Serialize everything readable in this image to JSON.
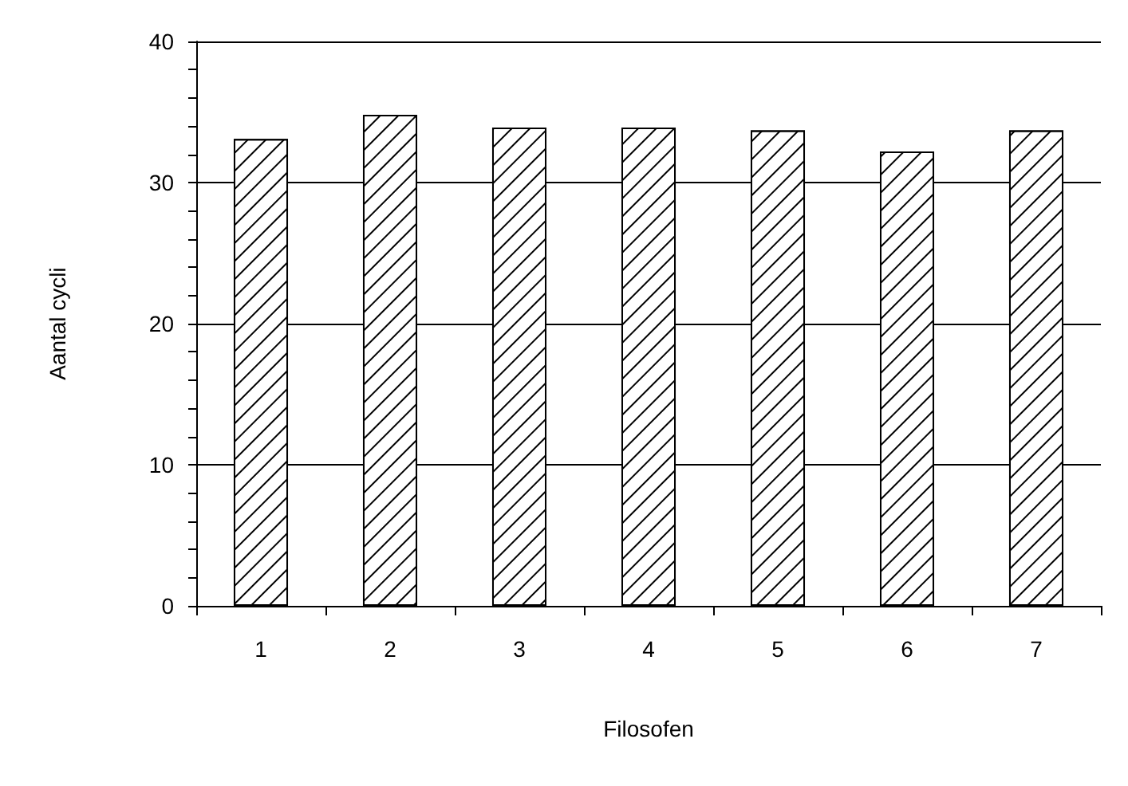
{
  "chart_data": {
    "type": "bar",
    "xlabel": "Filosofen",
    "ylabel": "Aantal cycli",
    "categories": [
      "1",
      "2",
      "3",
      "4",
      "5",
      "6",
      "7"
    ],
    "values": [
      33.1,
      34.8,
      33.9,
      33.9,
      33.7,
      32.2,
      33.7
    ],
    "color": "#ffffff",
    "ylim": [
      0,
      40
    ],
    "yticks": [
      0,
      {
        "value": 2,
        "label": null
      },
      {
        "value": 4,
        "label": null
      },
      {
        "value": 6,
        "label": null
      },
      {
        "value": 8,
        "label": null
      },
      10,
      {
        "value": 12,
        "label": null
      },
      {
        "value": 14,
        "label": null
      },
      {
        "value": 16,
        "label": null
      },
      {
        "value": 18,
        "label": null
      },
      20,
      {
        "value": 22,
        "label": null
      },
      {
        "value": 24,
        "label": null
      },
      {
        "value": 26,
        "label": null
      },
      {
        "value": 28,
        "label": null
      },
      30,
      {
        "value": 32,
        "label": null
      },
      {
        "value": 34,
        "label": null
      },
      {
        "value": 36,
        "label": null
      },
      {
        "value": 38,
        "label": null
      },
      40
    ],
    "grid": "y"
  }
}
